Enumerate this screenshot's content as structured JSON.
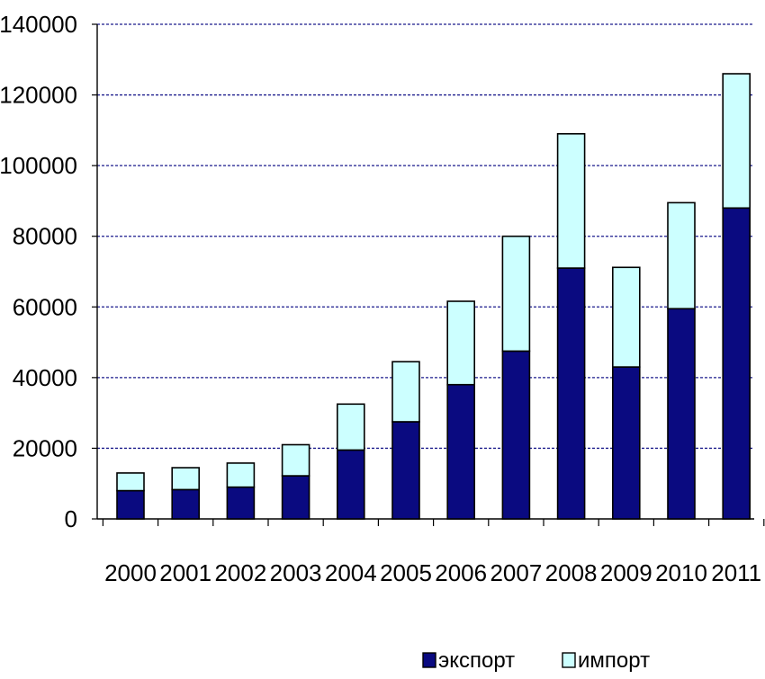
{
  "chart_data": {
    "type": "bar",
    "stacked": true,
    "title": "",
    "xlabel": "",
    "ylabel": "",
    "categories": [
      "2000",
      "2001",
      "2002",
      "2003",
      "2004",
      "2005",
      "2006",
      "2007",
      "2008",
      "2009",
      "2010",
      "2011"
    ],
    "series": [
      {
        "name": "экспорт",
        "color": "#0a0a80",
        "values": [
          8000,
          8300,
          9000,
          12200,
          19500,
          27500,
          38000,
          47500,
          71000,
          43000,
          59500,
          88000
        ]
      },
      {
        "name": "импорт",
        "color": "#ccffff",
        "values": [
          5000,
          6200,
          6800,
          8800,
          13000,
          17000,
          23600,
          32500,
          38000,
          28200,
          30000,
          38000
        ]
      }
    ],
    "ylim": [
      0,
      140000
    ],
    "y_ticks": [
      0,
      20000,
      40000,
      60000,
      80000,
      100000,
      120000,
      140000
    ],
    "y_tick_labels": [
      "0",
      "20000",
      "40000",
      "60000",
      "80000",
      "100000",
      "120000",
      "140000"
    ],
    "grid": true,
    "grid_color": "#1a1a8c",
    "grid_style": "dashed",
    "legend_position": "bottom-right",
    "legend_labels": [
      "экспорт",
      "импорт"
    ]
  }
}
